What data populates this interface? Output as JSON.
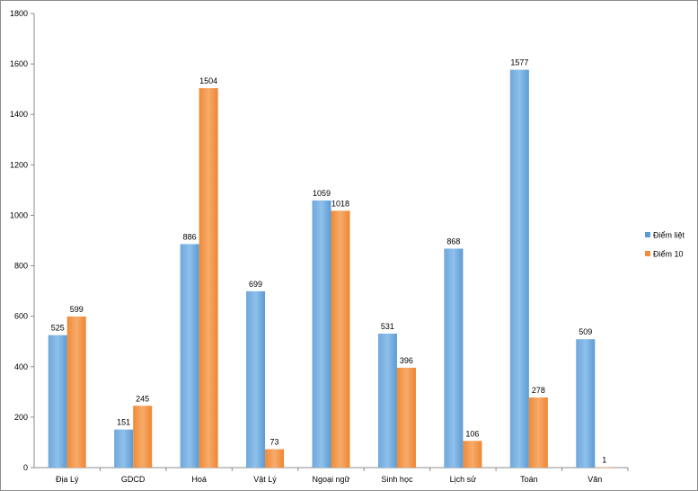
{
  "chart_data": {
    "type": "bar",
    "categories": [
      "Địa Lý",
      "GDCD",
      "Hoá",
      "Vật Lý",
      "Ngoại ngữ",
      "Sinh học",
      "Lịch sử",
      "Toán",
      "Văn"
    ],
    "series": [
      {
        "name": "Điểm liệt",
        "values": [
          525,
          151,
          886,
          699,
          1059,
          531,
          868,
          1577,
          509
        ],
        "color": "#5b9bd5"
      },
      {
        "name": "Điểm 10",
        "values": [
          599,
          245,
          1504,
          73,
          1018,
          396,
          106,
          278,
          1
        ],
        "color": "#f28e3c"
      }
    ],
    "ylim": [
      0,
      1800
    ],
    "yticks": [
      0,
      200,
      400,
      600,
      800,
      1000,
      1200,
      1400,
      1600,
      1800
    ],
    "grid": false,
    "legend_position": "right",
    "data_labels": true
  }
}
